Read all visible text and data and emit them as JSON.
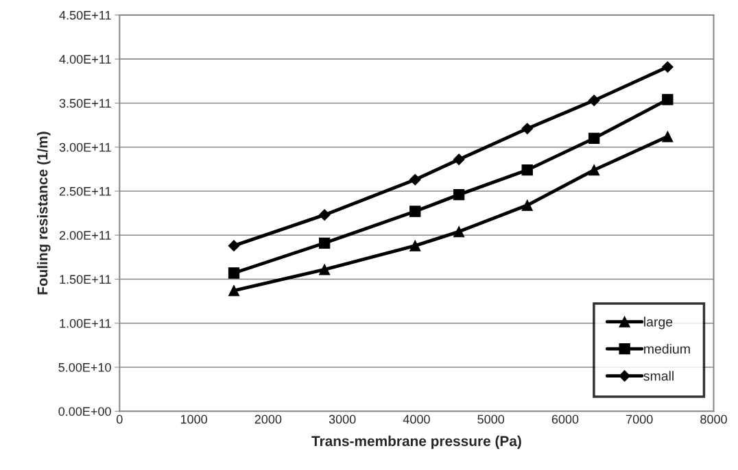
{
  "chart_data": {
    "type": "line",
    "xlabel": "Trans-membrane pressure (Pa)",
    "ylabel": "Fouling resistance (1/m)",
    "x": [
      1540,
      2760,
      3980,
      4570,
      5490,
      6390,
      7380
    ],
    "series": [
      {
        "name": "large",
        "color": "#000000",
        "marker": "triangle",
        "values": [
          137000000000.0,
          161000000000.0,
          188000000000.0,
          204000000000.0,
          234000000000.0,
          274000000000.0,
          312000000000.0
        ]
      },
      {
        "name": "medium",
        "color": "#000000",
        "marker": "square",
        "values": [
          157000000000.0,
          191000000000.0,
          227000000000.0,
          246000000000.0,
          274000000000.0,
          310000000000.0,
          354000000000.0
        ]
      },
      {
        "name": "small",
        "color": "#000000",
        "marker": "diamond",
        "values": [
          188000000000.0,
          223000000000.0,
          263000000000.0,
          286000000000.0,
          321000000000.0,
          353000000000.0,
          391000000000.0
        ]
      }
    ],
    "xlim": [
      0,
      8000
    ],
    "xticks": [
      0,
      1000,
      2000,
      3000,
      4000,
      5000,
      6000,
      7000,
      8000
    ],
    "ylim": [
      0,
      450000000000.0
    ],
    "yticks": [
      {
        "value": 0,
        "label": "0.00E+00"
      },
      {
        "value": 50000000000.0,
        "label": "5.00E+10"
      },
      {
        "value": 100000000000.0,
        "label": "1.00E+11"
      },
      {
        "value": 150000000000.0,
        "label": "1.50E+11"
      },
      {
        "value": 200000000000.0,
        "label": "2.00E+11"
      },
      {
        "value": 250000000000.0,
        "label": "2.50E+11"
      },
      {
        "value": 300000000000.0,
        "label": "3.00E+11"
      },
      {
        "value": 350000000000.0,
        "label": "3.50E+11"
      },
      {
        "value": 400000000000.0,
        "label": "4.00E+11"
      },
      {
        "value": 450000000000.0,
        "label": "4.50E+11"
      }
    ],
    "grid": "y",
    "legend": "bottom right",
    "line_style": "solid"
  }
}
